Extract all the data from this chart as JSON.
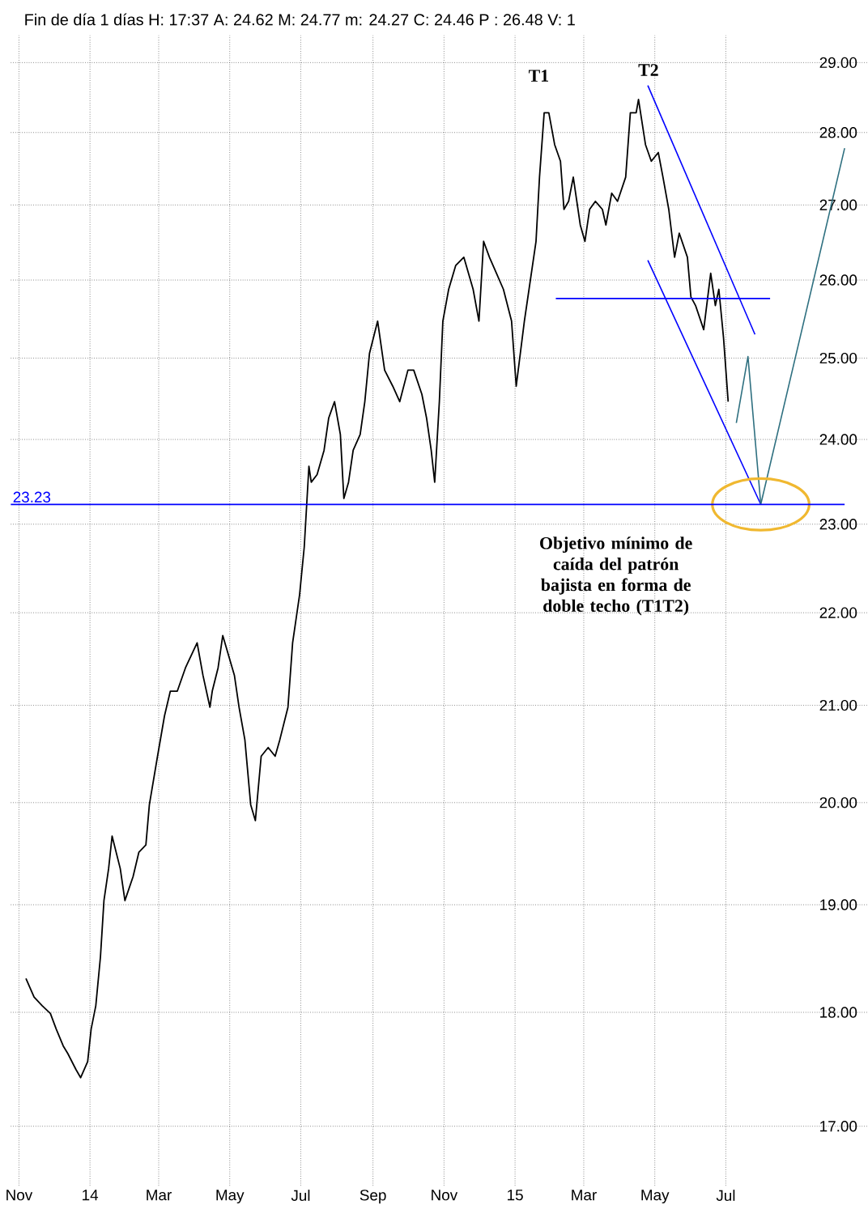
{
  "chart_data": {
    "type": "line",
    "title": "Fin de día 1 días H: 17:37 A: 24.62 M: 24.77 m: 24.27 C: 24.46 P : 26.48 V: 1",
    "log": "y",
    "grid": true,
    "marker": "none",
    "xlim": [
      "2013-10-25",
      "2015-10-31"
    ],
    "ylim": [
      16.5,
      29.4
    ],
    "xticks": [
      {
        "value": "2013-11-01",
        "label": "Nov"
      },
      {
        "value": "2014-01-01",
        "label": "14"
      },
      {
        "value": "2014-03-01",
        "label": "Mar"
      },
      {
        "value": "2014-05-01",
        "label": "May"
      },
      {
        "value": "2014-07-01",
        "label": "Jul"
      },
      {
        "value": "2014-09-01",
        "label": "Sep"
      },
      {
        "value": "2014-11-01",
        "label": "Nov"
      },
      {
        "value": "2015-01-01",
        "label": "15"
      },
      {
        "value": "2015-03-01",
        "label": "Mar"
      },
      {
        "value": "2015-05-01",
        "label": "May"
      },
      {
        "value": "2015-07-01",
        "label": "Jul"
      }
    ],
    "yticks": [
      {
        "value": 17,
        "label": "17.00"
      },
      {
        "value": 18,
        "label": "18.00"
      },
      {
        "value": 19,
        "label": "19.00"
      },
      {
        "value": 20,
        "label": "20.00"
      },
      {
        "value": 21,
        "label": "21.00"
      },
      {
        "value": 22,
        "label": "22.00"
      },
      {
        "value": 23,
        "label": "23.00"
      },
      {
        "value": 24,
        "label": "24.00"
      },
      {
        "value": 25,
        "label": "25.00"
      },
      {
        "value": 26,
        "label": "26.00"
      },
      {
        "value": 27,
        "label": "27.00"
      },
      {
        "value": 28,
        "label": "28.00"
      },
      {
        "value": 29,
        "label": "29.00"
      }
    ],
    "ref_lines": [
      {
        "axis": "y",
        "value": 23.23,
        "label": "23.23",
        "color": "#0000ff"
      }
    ],
    "annotations": [
      "T1",
      "T2",
      "Objetivo mínimo de caída del patrón bajista en forma de doble techo (T1T2)"
    ],
    "series": [
      {
        "color": "#000000",
        "x": [
          "2013-11-07",
          "2013-11-14",
          "2013-11-21",
          "2013-11-28",
          "2013-12-03",
          "2013-12-09",
          "2013-12-13",
          "2013-12-20",
          "2013-12-24",
          "2013-12-30",
          "2014-01-02",
          "2014-01-06",
          "2014-01-10",
          "2014-01-13",
          "2014-01-17",
          "2014-01-20",
          "2014-01-27",
          "2014-01-31",
          "2014-02-07",
          "2014-02-12",
          "2014-02-18",
          "2014-02-21",
          "2014-02-28",
          "2014-03-06",
          "2014-03-11",
          "2014-03-17",
          "2014-03-24",
          "2014-04-03",
          "2014-04-08",
          "2014-04-14",
          "2014-04-16",
          "2014-04-21",
          "2014-04-25",
          "2014-05-05",
          "2014-05-09",
          "2014-05-14",
          "2014-05-19",
          "2014-05-23",
          "2014-05-28",
          "2014-06-03",
          "2014-06-09",
          "2014-06-13",
          "2014-06-20",
          "2014-06-24",
          "2014-06-30",
          "2014-07-02",
          "2014-07-04",
          "2014-07-08",
          "2014-07-10",
          "2014-07-15",
          "2014-07-21",
          "2014-07-25",
          "2014-07-30",
          "2014-08-04",
          "2014-08-07",
          "2014-08-11",
          "2014-08-15",
          "2014-08-21",
          "2014-08-25",
          "2014-08-29",
          "2014-09-05",
          "2014-09-11",
          "2014-09-18",
          "2014-09-24",
          "2014-10-01",
          "2014-10-06",
          "2014-10-13",
          "2014-10-17",
          "2014-10-21",
          "2014-10-24",
          "2014-10-28",
          "2014-10-31",
          "2014-11-05",
          "2014-11-11",
          "2014-11-18",
          "2014-11-26",
          "2014-12-01",
          "2014-12-05",
          "2014-12-10",
          "2014-12-16",
          "2014-12-22",
          "2014-12-29",
          "2015-01-02",
          "2015-01-09",
          "2015-01-13",
          "2015-01-19",
          "2015-01-22",
          "2015-01-26",
          "2015-01-30",
          "2015-02-04",
          "2015-02-09",
          "2015-02-12",
          "2015-02-16",
          "2015-02-20",
          "2015-02-26",
          "2015-03-02",
          "2015-03-06",
          "2015-03-11",
          "2015-03-17",
          "2015-03-20",
          "2015-03-25",
          "2015-03-30",
          "2015-04-06",
          "2015-04-10",
          "2015-04-15",
          "2015-04-17",
          "2015-04-23",
          "2015-04-28",
          "2015-05-04",
          "2015-05-08",
          "2015-05-13",
          "2015-05-18",
          "2015-05-22",
          "2015-05-29",
          "2015-06-01",
          "2015-06-05",
          "2015-06-12",
          "2015-06-18",
          "2015-06-22",
          "2015-06-25",
          "2015-06-29",
          "2015-07-03"
        ],
        "values": [
          18.31,
          18.14,
          18.06,
          17.99,
          17.85,
          17.7,
          17.63,
          17.49,
          17.42,
          17.56,
          17.85,
          18.06,
          18.51,
          19.04,
          19.35,
          19.67,
          19.35,
          19.04,
          19.27,
          19.51,
          19.58,
          19.98,
          20.47,
          20.89,
          21.15,
          21.15,
          21.4,
          21.67,
          21.32,
          20.98,
          21.15,
          21.4,
          21.75,
          21.32,
          20.98,
          20.64,
          19.98,
          19.82,
          20.47,
          20.56,
          20.47,
          20.64,
          20.98,
          21.67,
          22.2,
          22.47,
          22.74,
          23.68,
          23.49,
          23.58,
          23.87,
          24.26,
          24.46,
          24.06,
          23.3,
          23.49,
          23.87,
          24.06,
          24.46,
          25.06,
          25.47,
          24.85,
          24.65,
          24.46,
          24.85,
          24.85,
          24.55,
          24.26,
          23.87,
          23.49,
          24.46,
          25.47,
          25.88,
          26.19,
          26.3,
          25.88,
          25.47,
          26.51,
          26.3,
          26.09,
          25.88,
          25.47,
          24.65,
          25.47,
          25.88,
          26.51,
          27.38,
          28.28,
          28.28,
          27.83,
          27.6,
          26.94,
          27.05,
          27.38,
          26.73,
          26.51,
          26.94,
          27.05,
          26.94,
          26.73,
          27.16,
          27.05,
          27.38,
          28.28,
          28.28,
          28.47,
          27.83,
          27.6,
          27.72,
          27.38,
          26.94,
          26.3,
          26.62,
          26.3,
          25.78,
          25.67,
          25.36,
          26.09,
          25.67,
          25.88,
          25.26,
          24.46
        ]
      },
      {
        "color": "#0000ff",
        "x": [
          "2015-02-05",
          "2015-08-08"
        ],
        "values": [
          25.76,
          25.76
        ]
      },
      {
        "color": "#0000ff",
        "x": [
          "2015-04-25",
          "2015-07-26"
        ],
        "values": [
          28.67,
          25.3
        ]
      },
      {
        "color": "#0000ff",
        "x": [
          "2015-04-25",
          "2015-07-31"
        ],
        "values": [
          26.26,
          23.23
        ]
      },
      {
        "color": "#2f7080",
        "x": [
          "2015-07-10",
          "2015-07-20",
          "2015-07-31",
          "2015-10-11"
        ],
        "values": [
          24.2,
          25.02,
          23.23,
          27.78
        ]
      }
    ]
  }
}
